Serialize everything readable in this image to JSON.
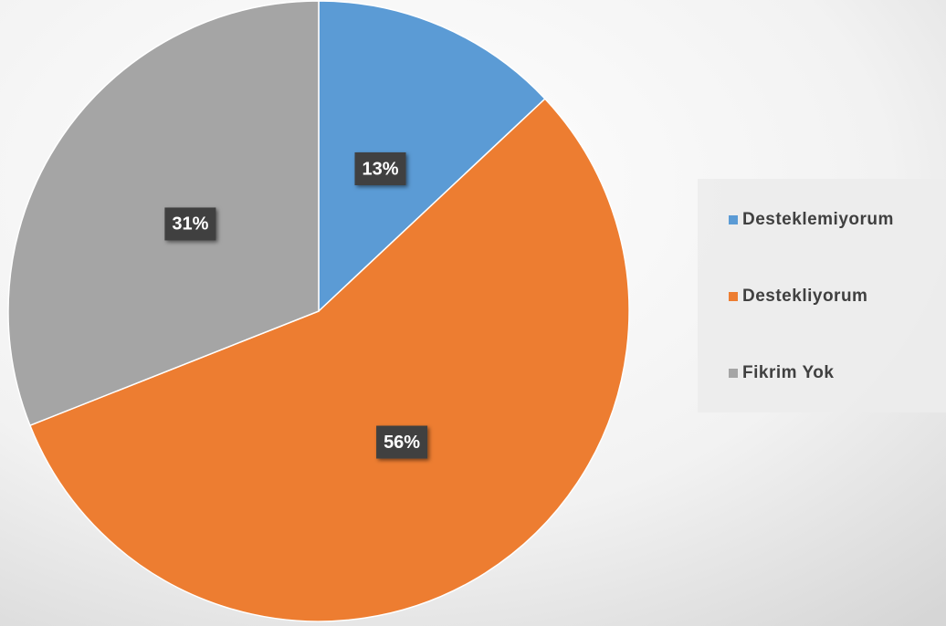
{
  "chart_data": {
    "type": "pie",
    "categories": [
      "Desteklemiyorum",
      "Destekliyorum",
      "Fikrim Yok"
    ],
    "values": [
      13,
      56,
      31
    ],
    "value_labels": [
      "13%",
      "56%",
      "31%"
    ],
    "colors": [
      "#5b9bd5",
      "#ed7d31",
      "#a5a5a5"
    ],
    "legend": "right"
  }
}
